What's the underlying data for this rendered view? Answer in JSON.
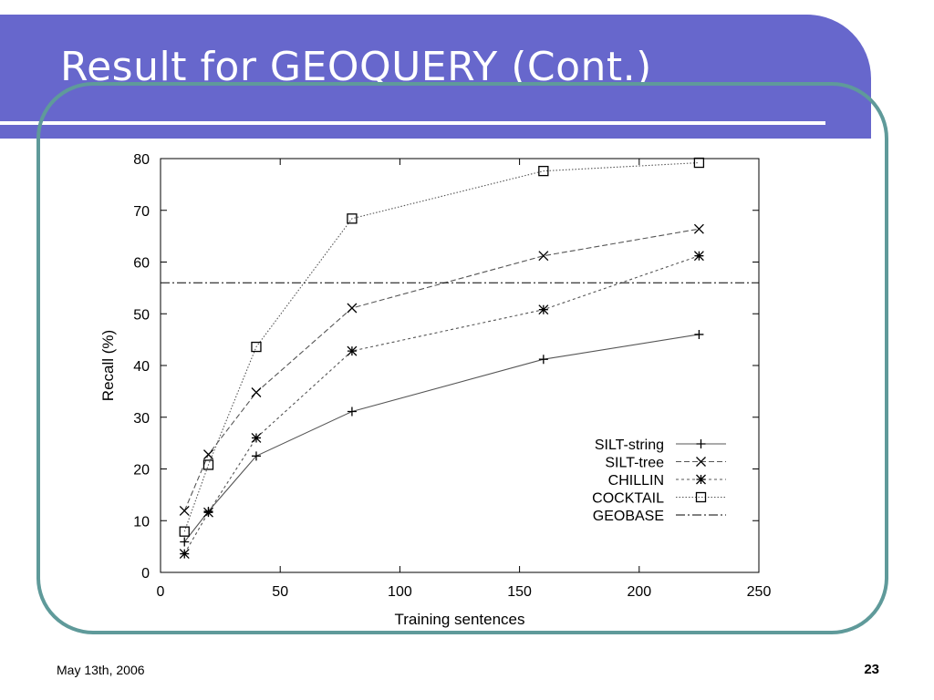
{
  "slide": {
    "title": "Result for GEOQUERY (Cont.)",
    "footer_date": "May 13th, 2006",
    "page_number": "23"
  },
  "colors": {
    "header_bar": "#6767cc",
    "frame_border": "#5f9a9a",
    "ink": "#000000",
    "plot_line": "#555555"
  },
  "chart_data": {
    "type": "line",
    "xlabel": "Training sentences",
    "ylabel": "Recall (%)",
    "xlim": [
      0,
      250
    ],
    "ylim": [
      0,
      80
    ],
    "xticks": [
      0,
      50,
      100,
      150,
      200,
      250
    ],
    "yticks": [
      0,
      10,
      20,
      30,
      40,
      50,
      60,
      70,
      80
    ],
    "grid": false,
    "legend_position": "bottom-right",
    "x": [
      10,
      20,
      40,
      80,
      160,
      225
    ],
    "series": [
      {
        "name": "SILT-string",
        "marker": "plus",
        "dash": "solid",
        "values": [
          5.9,
          11.8,
          22.5,
          31.1,
          41.2,
          46.0
        ]
      },
      {
        "name": "SILT-tree",
        "marker": "x",
        "dash": "dashed",
        "values": [
          11.9,
          22.8,
          34.8,
          51.1,
          61.2,
          66.4
        ]
      },
      {
        "name": "CHILLIN",
        "marker": "star",
        "dash": "dotted",
        "values": [
          3.6,
          11.6,
          26.0,
          42.8,
          50.8,
          61.2
        ]
      },
      {
        "name": "COCKTAIL",
        "marker": "square",
        "dash": "fine-dotted",
        "values": [
          7.9,
          20.8,
          43.6,
          68.4,
          77.6,
          79.2
        ]
      },
      {
        "name": "GEOBASE",
        "marker": "none",
        "dash": "dash-dot",
        "constant": 56.0
      }
    ]
  }
}
